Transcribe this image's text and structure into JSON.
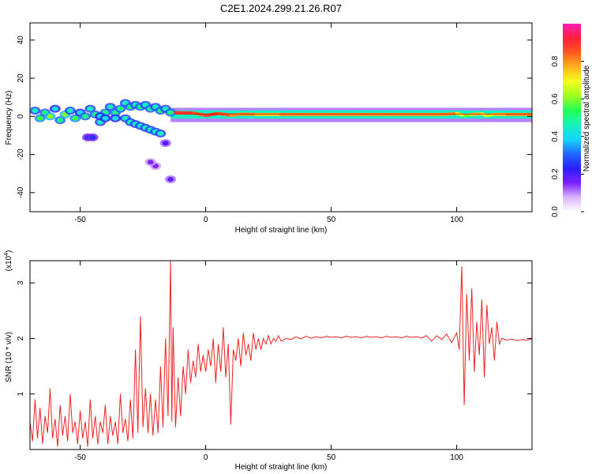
{
  "title": "C2E1.2024.299.21.26.R07",
  "colors": {
    "signal": "#ee2222",
    "ridge_core": "#cc2200",
    "background": "#ffffff"
  },
  "chart_data": [
    {
      "type": "heatmap",
      "xlabel": "Height of straight line (km)",
      "ylabel": "Frequency (Hz)",
      "xlim": [
        -70,
        130
      ],
      "ylim": [
        -50,
        49
      ],
      "xticks": [
        -50,
        0,
        50,
        100
      ],
      "xtick_labels": [
        "-50",
        "0",
        "50",
        "100"
      ],
      "yticks": [
        -40,
        -20,
        0,
        20,
        40
      ],
      "ytick_labels": [
        "-40",
        "-20",
        "0",
        "20",
        "40"
      ],
      "colorbar": {
        "label": "Normalized spectral amplitude",
        "range": [
          0,
          1
        ],
        "ticks": [
          0,
          0.2,
          0.4,
          0.6,
          0.8
        ],
        "tick_labels": [
          "0.0",
          "0.2",
          "0.4",
          "0.6",
          "0.8"
        ],
        "colormap": [
          "#ffffff",
          "#d9b3ff",
          "#7a1fff",
          "#2a1fff",
          "#1f6bff",
          "#16d4ff",
          "#17f2b9",
          "#22ff55",
          "#9cff1f",
          "#f3ff1f",
          "#ffb21f",
          "#ff5a1f",
          "#ff1f3a",
          "#ff1fb0"
        ]
      },
      "ridge_points": [
        [
          -68,
          3,
          0.45
        ],
        [
          -66,
          -1,
          0.55
        ],
        [
          -64,
          2,
          0.5
        ],
        [
          -62,
          0,
          0.6
        ],
        [
          -60,
          4,
          0.4
        ],
        [
          -58,
          -2,
          0.5
        ],
        [
          -56,
          1,
          0.6
        ],
        [
          -54,
          3,
          0.45
        ],
        [
          -52,
          -1,
          0.55
        ],
        [
          -50,
          2,
          0.4
        ],
        [
          -48,
          0,
          0.5
        ],
        [
          -46,
          4,
          0.45
        ],
        [
          -44,
          1,
          0.5
        ],
        [
          -42,
          -3,
          0.45
        ],
        [
          -40,
          2,
          0.5
        ],
        [
          -38,
          5,
          0.45
        ],
        [
          -36,
          2,
          0.5
        ],
        [
          -34,
          4,
          0.5
        ],
        [
          -32,
          7,
          0.45
        ],
        [
          -30,
          5,
          0.5
        ],
        [
          -28,
          6,
          0.45
        ],
        [
          -26,
          5,
          0.5
        ],
        [
          -24,
          6,
          0.45
        ],
        [
          -22,
          4,
          0.5
        ],
        [
          -20,
          5,
          0.45
        ],
        [
          -18,
          3,
          0.5
        ],
        [
          -16,
          4,
          0.45
        ],
        [
          -14,
          2,
          0.5
        ],
        [
          -42,
          0,
          0.4
        ],
        [
          -40,
          -1,
          0.4
        ],
        [
          -36,
          -1,
          0.4
        ],
        [
          -32,
          -1,
          0.45
        ],
        [
          -30,
          -3,
          0.45
        ],
        [
          -28,
          -4,
          0.45
        ],
        [
          -26,
          -5,
          0.45
        ],
        [
          -24,
          -6,
          0.45
        ],
        [
          -22,
          -7,
          0.45
        ],
        [
          -20,
          -8,
          0.45
        ],
        [
          -18,
          -9,
          0.45
        ],
        [
          -47,
          -11,
          0.25
        ],
        [
          -45,
          -11,
          0.25
        ],
        [
          -16,
          -14,
          0.2
        ],
        [
          -20,
          -26,
          0.15
        ],
        [
          -22,
          -24,
          0.15
        ],
        [
          -14,
          -33,
          0.18
        ]
      ],
      "ridge_line": [
        [
          -12,
          2.0,
          0.9
        ],
        [
          -5,
          1.8,
          0.85
        ],
        [
          0,
          0.5,
          0.9
        ],
        [
          5,
          1.5,
          0.85
        ],
        [
          10,
          0.6,
          0.8
        ],
        [
          15,
          1.2,
          0.8
        ],
        [
          20,
          1.0,
          0.75
        ],
        [
          25,
          1.0,
          0.75
        ],
        [
          30,
          1.0,
          0.8
        ],
        [
          35,
          1.0,
          0.8
        ],
        [
          40,
          1.0,
          0.8
        ],
        [
          45,
          1.0,
          0.8
        ],
        [
          50,
          1.0,
          0.8
        ],
        [
          55,
          1.0,
          0.8
        ],
        [
          60,
          1.0,
          0.8
        ],
        [
          65,
          1.0,
          0.8
        ],
        [
          70,
          1.0,
          0.8
        ],
        [
          75,
          1.0,
          0.8
        ],
        [
          80,
          1.0,
          0.8
        ],
        [
          85,
          1.0,
          0.8
        ],
        [
          90,
          1.0,
          0.8
        ],
        [
          95,
          1.0,
          0.8
        ],
        [
          100,
          1.5,
          0.7
        ],
        [
          103,
          0.5,
          0.6
        ],
        [
          106,
          1.0,
          0.75
        ],
        [
          110,
          1.3,
          0.7
        ],
        [
          112,
          0.4,
          0.65
        ],
        [
          115,
          1.0,
          0.75
        ],
        [
          120,
          1.0,
          0.8
        ],
        [
          125,
          1.0,
          0.8
        ],
        [
          130,
          1.0,
          0.8
        ]
      ]
    },
    {
      "type": "line",
      "xlabel": "Height of straight line (km)",
      "ylabel": "SNR (10 * v/v)",
      "scale_label": "(x10",
      "scale_exponent": "4",
      "xlim": [
        -70,
        130
      ],
      "ylim": [
        0,
        3.4
      ],
      "xticks": [
        -50,
        0,
        50,
        100
      ],
      "xtick_labels": [
        "-50",
        "0",
        "50",
        "100"
      ],
      "yticks": [
        1,
        2,
        3
      ],
      "ytick_labels": [
        "1",
        "2",
        "3"
      ],
      "series": [
        {
          "color": "#ee2222",
          "points": [
            [
              -70,
              0.5
            ],
            [
              -69,
              0.15
            ],
            [
              -68,
              0.9
            ],
            [
              -67,
              0.2
            ],
            [
              -66,
              0.75
            ],
            [
              -65,
              0.1
            ],
            [
              -64,
              0.6
            ],
            [
              -63,
              0.3
            ],
            [
              -62,
              1.1
            ],
            [
              -61,
              0.2
            ],
            [
              -60,
              0.55
            ],
            [
              -59,
              0.05
            ],
            [
              -58,
              0.8
            ],
            [
              -57,
              0.25
            ],
            [
              -56,
              0.6
            ],
            [
              -55,
              0.15
            ],
            [
              -54,
              1.0
            ],
            [
              -53,
              0.3
            ],
            [
              -52,
              0.5
            ],
            [
              -51,
              0.1
            ],
            [
              -50,
              0.7
            ],
            [
              -49,
              0.2
            ],
            [
              -48,
              0.5
            ],
            [
              -47,
              0.05
            ],
            [
              -46,
              0.9
            ],
            [
              -45,
              0.2
            ],
            [
              -44,
              0.6
            ],
            [
              -43,
              0.1
            ],
            [
              -42,
              0.5
            ],
            [
              -41,
              0.3
            ],
            [
              -40,
              0.8
            ],
            [
              -39,
              0.1
            ],
            [
              -38,
              0.6
            ],
            [
              -37,
              0.25
            ],
            [
              -36,
              0.5
            ],
            [
              -35,
              0.1
            ],
            [
              -34,
              1.0
            ],
            [
              -33,
              0.3
            ],
            [
              -32,
              0.55
            ],
            [
              -31,
              0.15
            ],
            [
              -30,
              0.9
            ],
            [
              -29,
              0.2
            ],
            [
              -28,
              1.8
            ],
            [
              -27,
              0.3
            ],
            [
              -26,
              2.4
            ],
            [
              -25,
              0.4
            ],
            [
              -24,
              1.1
            ],
            [
              -23,
              0.3
            ],
            [
              -22,
              1.0
            ],
            [
              -21,
              0.25
            ],
            [
              -20,
              0.9
            ],
            [
              -19,
              0.3
            ],
            [
              -18,
              1.5
            ],
            [
              -17,
              0.4
            ],
            [
              -16,
              2.0
            ],
            [
              -15,
              0.6
            ],
            [
              -14,
              3.4
            ],
            [
              -13.5,
              0.5
            ],
            [
              -13,
              2.2
            ],
            [
              -12,
              0.4
            ],
            [
              -11,
              1.3
            ],
            [
              -10,
              0.6
            ],
            [
              -9,
              1.5
            ],
            [
              -8,
              1.0
            ],
            [
              -7,
              1.8
            ],
            [
              -6,
              1.2
            ],
            [
              -5,
              1.6
            ],
            [
              -4,
              1.3
            ],
            [
              -3,
              1.9
            ],
            [
              -2,
              1.4
            ],
            [
              -1,
              1.7
            ],
            [
              0,
              1.4
            ],
            [
              1,
              1.8
            ],
            [
              2,
              1.5
            ],
            [
              3,
              2.0
            ],
            [
              4,
              1.2
            ],
            [
              5,
              1.9
            ],
            [
              6,
              1.4
            ],
            [
              7,
              2.2
            ],
            [
              8,
              1.3
            ],
            [
              9,
              1.9
            ],
            [
              10,
              0.45
            ],
            [
              11,
              1.8
            ],
            [
              12,
              1.6
            ],
            [
              13,
              2.0
            ],
            [
              14,
              1.5
            ],
            [
              15,
              2.1
            ],
            [
              16,
              1.7
            ],
            [
              17,
              1.9
            ],
            [
              18,
              1.6
            ],
            [
              19,
              2.1
            ],
            [
              20,
              1.8
            ],
            [
              21,
              2.0
            ],
            [
              22,
              1.8
            ],
            [
              23,
              2.0
            ],
            [
              24,
              1.9
            ],
            [
              25,
              2.05
            ],
            [
              26,
              1.9
            ],
            [
              27,
              2.0
            ],
            [
              28,
              1.95
            ],
            [
              29,
              2.05
            ],
            [
              30,
              1.95
            ],
            [
              32,
              2.0
            ],
            [
              34,
              1.98
            ],
            [
              36,
              2.03
            ],
            [
              38,
              1.99
            ],
            [
              40,
              2.04
            ],
            [
              42,
              2.0
            ],
            [
              44,
              2.03
            ],
            [
              46,
              2.01
            ],
            [
              48,
              2.04
            ],
            [
              50,
              2.02
            ],
            [
              52,
              2.03
            ],
            [
              54,
              2.01
            ],
            [
              56,
              2.04
            ],
            [
              58,
              2.02
            ],
            [
              60,
              2.03
            ],
            [
              62,
              2.01
            ],
            [
              64,
              2.04
            ],
            [
              66,
              2.02
            ],
            [
              68,
              2.03
            ],
            [
              70,
              2.01
            ],
            [
              72,
              2.04
            ],
            [
              74,
              2.02
            ],
            [
              76,
              2.03
            ],
            [
              78,
              2.01
            ],
            [
              80,
              2.04
            ],
            [
              82,
              2.02
            ],
            [
              84,
              2.03
            ],
            [
              86,
              2.01
            ],
            [
              88,
              2.05
            ],
            [
              90,
              1.95
            ],
            [
              92,
              2.05
            ],
            [
              94,
              1.98
            ],
            [
              96,
              2.08
            ],
            [
              98,
              1.92
            ],
            [
              100,
              2.1
            ],
            [
              101,
              1.8
            ],
            [
              102,
              3.3
            ],
            [
              103,
              0.8
            ],
            [
              104,
              2.8
            ],
            [
              105,
              1.6
            ],
            [
              106,
              2.9
            ],
            [
              107,
              1.4
            ],
            [
              108,
              2.3
            ],
            [
              109,
              1.7
            ],
            [
              110,
              2.7
            ],
            [
              111,
              1.3
            ],
            [
              112,
              2.6
            ],
            [
              113,
              1.9
            ],
            [
              114,
              2.2
            ],
            [
              115,
              1.6
            ],
            [
              116,
              2.3
            ],
            [
              117,
              1.9
            ],
            [
              118,
              2.0
            ],
            [
              120,
              1.97
            ],
            [
              122,
              1.99
            ],
            [
              124,
              1.96
            ],
            [
              126,
              1.98
            ],
            [
              128,
              1.97
            ],
            [
              130,
              1.99
            ]
          ]
        }
      ]
    }
  ]
}
